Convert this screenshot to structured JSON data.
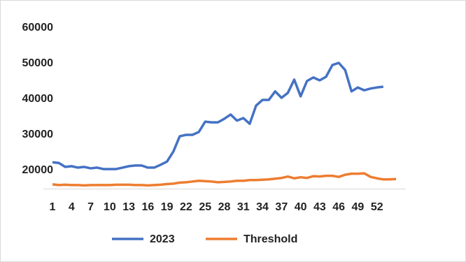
{
  "chart_data": {
    "type": "line",
    "x": [
      1,
      2,
      3,
      4,
      5,
      6,
      7,
      8,
      9,
      10,
      11,
      12,
      13,
      14,
      15,
      16,
      17,
      18,
      19,
      20,
      21,
      22,
      23,
      24,
      25,
      26,
      27,
      28,
      29,
      30,
      31,
      32,
      33,
      34,
      35,
      36,
      37,
      38,
      39,
      40,
      41,
      42,
      43,
      44,
      45,
      46,
      47,
      48,
      49,
      50,
      51,
      52,
      53,
      54,
      55
    ],
    "xlim": [
      1,
      55
    ],
    "xticks": [
      1,
      4,
      7,
      10,
      13,
      16,
      19,
      22,
      25,
      28,
      31,
      34,
      37,
      40,
      43,
      46,
      49,
      52
    ],
    "ylim": [
      15000,
      60000
    ],
    "yticks": [
      20000,
      30000,
      40000,
      50000,
      60000
    ],
    "legend": "bottom",
    "series": [
      {
        "name": "2023",
        "color": "#4472c4",
        "values": [
          22300,
          22100,
          21000,
          21200,
          20800,
          21000,
          20600,
          20800,
          20400,
          20400,
          20400,
          20800,
          21200,
          21400,
          21400,
          20800,
          20800,
          21600,
          22500,
          25300,
          29600,
          30000,
          30000,
          30800,
          33700,
          33500,
          33500,
          34500,
          35700,
          34000,
          34700,
          33100,
          38200,
          39800,
          39800,
          42200,
          40400,
          41800,
          45500,
          40800,
          45100,
          46100,
          45300,
          46300,
          49600,
          50200,
          48200,
          42200,
          43300,
          42500,
          43000,
          43300,
          43500,
          null,
          null
        ]
      },
      {
        "name": "Threshold",
        "color": "#ed7d31",
        "values": [
          16100,
          15900,
          16000,
          15900,
          15900,
          15800,
          15900,
          15900,
          15900,
          15900,
          16000,
          16000,
          16000,
          15900,
          15900,
          15800,
          15900,
          16000,
          16200,
          16300,
          16600,
          16700,
          16900,
          17100,
          17000,
          16900,
          16700,
          16800,
          16900,
          17100,
          17100,
          17300,
          17300,
          17400,
          17500,
          17700,
          17900,
          18300,
          17800,
          18100,
          17900,
          18400,
          18300,
          18500,
          18500,
          18200,
          18800,
          19100,
          19100,
          19200,
          18200,
          17800,
          17500,
          17500,
          17600
        ]
      }
    ]
  }
}
